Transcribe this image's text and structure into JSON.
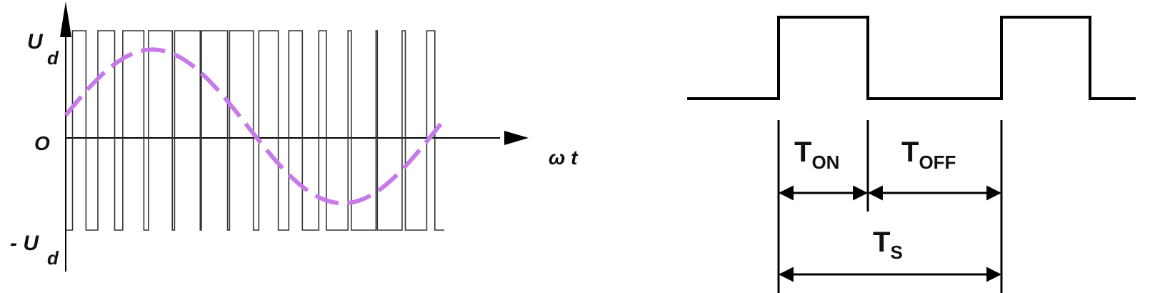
{
  "pwm_diagram": {
    "y_label_main": "U",
    "y_label_sub": "d",
    "neg_y_label_prefix": "- U",
    "neg_y_label_sub": "d",
    "origin_label": "O",
    "x_label": "ω t",
    "modulating_wave_color": "#c77be8",
    "pulse_fractions": [
      0.5,
      0.62,
      0.78,
      0.88,
      0.95,
      0.97,
      0.88,
      0.72,
      0.5,
      0.28,
      0.12,
      0.05,
      0.12,
      0.3
    ]
  },
  "timing_diagram": {
    "ton_main": "T",
    "ton_sub": "ON",
    "toff_main": "T",
    "toff_sub": "OFF",
    "ts_main": "T",
    "ts_sub": "S"
  }
}
